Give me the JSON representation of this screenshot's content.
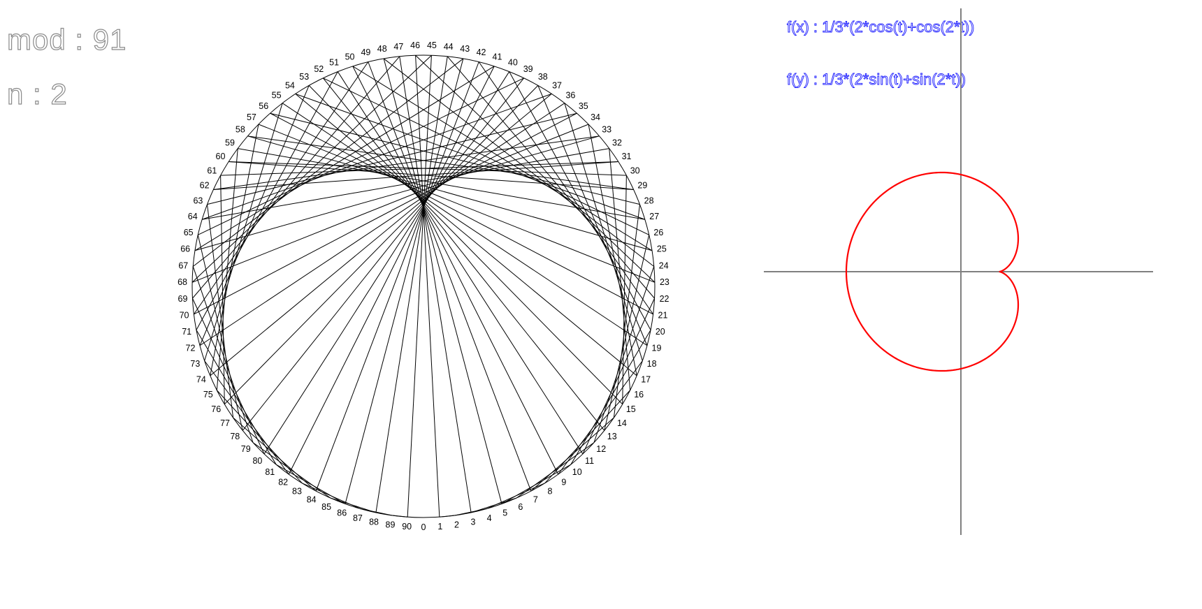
{
  "parameters": {
    "mod_label": "mod : 91",
    "n_label": "n : 2",
    "mod": 91,
    "n": 2
  },
  "formulas": {
    "fx": "f(x) : 1/3*(2*cos(t)+cos(2*t))",
    "fy": "f(y) : 1/3*(2*sin(t)+sin(2*t))"
  },
  "times_table": {
    "labels": [
      "0",
      "1",
      "2",
      "3",
      "4",
      "5",
      "6",
      "7",
      "8",
      "9",
      "10",
      "11",
      "12",
      "13",
      "14",
      "15",
      "16",
      "17",
      "18",
      "19",
      "20",
      "21",
      "22",
      "23",
      "24",
      "25",
      "26",
      "27",
      "28",
      "29",
      "30",
      "31",
      "32",
      "33",
      "34",
      "35",
      "36",
      "37",
      "38",
      "39",
      "40",
      "41",
      "42",
      "43",
      "44",
      "45",
      "46",
      "47",
      "48",
      "49",
      "50",
      "51",
      "52",
      "53",
      "54",
      "55",
      "56",
      "57",
      "58",
      "59",
      "60",
      "61",
      "62",
      "63",
      "64",
      "65",
      "66",
      "67",
      "68",
      "69",
      "70",
      "71",
      "72",
      "73",
      "74",
      "75",
      "76",
      "77",
      "78",
      "79",
      "80",
      "81",
      "82",
      "83",
      "84",
      "85",
      "86",
      "87",
      "88",
      "89",
      "90"
    ],
    "line_color": "#000000",
    "circle_color": "#000000"
  },
  "parametric_plot": {
    "curve_color": "#ff0000",
    "axis_color": "#808080",
    "samples": 400
  }
}
